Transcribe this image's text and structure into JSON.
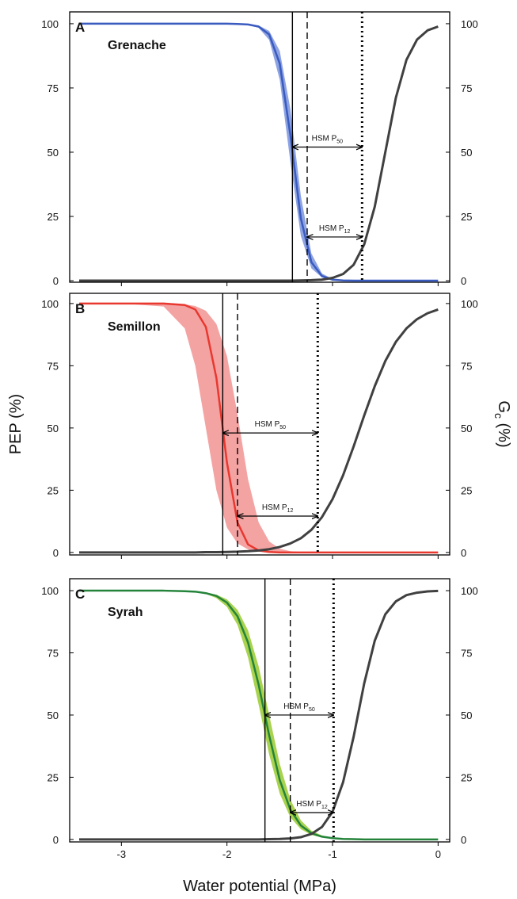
{
  "chart_data": [
    {
      "type": "line",
      "panel": "A",
      "title": "Grenache",
      "x": [
        -3.4,
        -3,
        -2.6,
        -2.4,
        -2.3,
        -2.2,
        -2.1,
        -2,
        -1.9,
        -1.8,
        -1.7,
        -1.6,
        -1.5,
        -1.4,
        -1.3,
        -1.2,
        -1.1,
        -1,
        -0.9,
        -0.8,
        -0.7,
        -0.6,
        -0.5,
        -0.4,
        -0.3,
        -0.2,
        -0.1,
        0
      ],
      "series": [
        {
          "color": "#3a5bbf",
          "band_color": "#8ea3e2",
          "values": [
            100,
            100,
            100,
            100,
            100,
            100,
            100,
            100,
            99.9,
            99.7,
            98.9,
            95.8,
            84.5,
            56.9,
            24.2,
            7.2,
            1.8,
            0.4,
            0.1,
            0,
            0,
            0,
            0,
            0,
            0,
            0,
            0,
            0
          ],
          "band_low": [
            100,
            100,
            100,
            100,
            100,
            100,
            100,
            100,
            99.9,
            99.6,
            98.4,
            93.7,
            78.2,
            46.5,
            17.4,
            4.8,
            1.2,
            0.3,
            0.1,
            0,
            0,
            0,
            0,
            0,
            0,
            0,
            0,
            0
          ],
          "band_high": [
            100,
            100,
            100,
            100,
            100,
            100,
            100,
            100,
            100,
            99.8,
            99.3,
            97.2,
            89.4,
            67.0,
            33.0,
            10.6,
            2.8,
            0.7,
            0.2,
            0,
            0,
            0,
            0,
            0,
            0,
            0,
            0,
            0
          ]
        },
        {
          "color": "#404040",
          "axis": "y2",
          "values": [
            0,
            0,
            0,
            0,
            0,
            0,
            0,
            0,
            0,
            0,
            0,
            0,
            0,
            0,
            0.1,
            0.2,
            0.4,
            1.1,
            2.6,
            6.2,
            14.1,
            28.8,
            50,
            71.2,
            85.9,
            93.8,
            97.4,
            98.9
          ]
        }
      ],
      "xlim": [
        -3.49,
        0.11
      ],
      "ylim": [
        -0.6,
        104.6
      ],
      "yticks": [
        0,
        25,
        50,
        75,
        100
      ],
      "y2lim": [
        -0.6,
        104.6
      ],
      "y2ticks": [
        0,
        25,
        50,
        75,
        100
      ],
      "vlines": [
        {
          "x": -1.38,
          "style": "solid"
        },
        {
          "x": -1.24,
          "style": "dashed"
        },
        {
          "x": -0.72,
          "style": "dotted"
        }
      ],
      "annotations": [
        {
          "text": "HSM P",
          "sub": "50",
          "x_from": -1.38,
          "x_to": -0.72,
          "y": 52
        },
        {
          "text": "HSM P",
          "sub": "12",
          "x_from": -1.24,
          "x_to": -0.72,
          "y": 17
        }
      ]
    },
    {
      "type": "line",
      "panel": "B",
      "title": "Semillon",
      "ylabel": "PEP (%)",
      "y2label": [
        "G",
        "c",
        " (%)"
      ],
      "x": [
        -3.4,
        -3,
        -2.6,
        -2.4,
        -2.3,
        -2.2,
        -2.1,
        -2,
        -1.9,
        -1.8,
        -1.7,
        -1.6,
        -1.5,
        -1.4,
        -1.3,
        -1.2,
        -1.1,
        -1,
        -0.9,
        -0.8,
        -0.7,
        -0.6,
        -0.5,
        -0.4,
        -0.3,
        -0.2,
        -0.1,
        0
      ],
      "series": [
        {
          "color": "#e8382f",
          "band_color": "#f4a3a3",
          "values": [
            100,
            100,
            100,
            99.4,
            97.6,
            90.6,
            70.1,
            36.1,
            12.0,
            3.2,
            0.8,
            0.2,
            0,
            0,
            0,
            0,
            0,
            0,
            0,
            0,
            0,
            0,
            0,
            0,
            0,
            0,
            0,
            0
          ],
          "band_low": [
            100,
            100,
            98.8,
            90.0,
            75.0,
            50,
            25.0,
            10.0,
            3.6,
            1.2,
            0.4,
            0.1,
            0,
            0,
            0,
            0,
            0,
            0,
            0,
            0,
            0,
            0,
            0,
            0,
            0,
            0,
            0,
            0
          ],
          "band_high": [
            100,
            100,
            100,
            99.7,
            99.0,
            97.1,
            91.8,
            78.9,
            55.5,
            29.3,
            12.1,
            4.4,
            1.5,
            0.5,
            0.2,
            0.1,
            0,
            0,
            0,
            0,
            0,
            0,
            0,
            0,
            0,
            0,
            0,
            0
          ]
        },
        {
          "color": "#404040",
          "axis": "y2",
          "values": [
            0,
            0,
            0,
            0,
            0,
            0.1,
            0.1,
            0.2,
            0.3,
            0.5,
            0.8,
            1.3,
            2.2,
            3.6,
            5.7,
            9.1,
            14.2,
            21.4,
            31.0,
            42.6,
            55.0,
            66.8,
            76.9,
            84.6,
            90.0,
            93.7,
            96.1,
            97.6
          ]
        }
      ],
      "xlim": [
        -3.49,
        0.11
      ],
      "ylim": [
        -1,
        104.1
      ],
      "yticks": [
        0,
        25,
        50,
        75,
        100
      ],
      "y2lim": [
        -1,
        104.1
      ],
      "y2ticks": [
        0,
        25,
        50,
        75,
        100
      ],
      "vlines": [
        {
          "x": -2.04,
          "style": "solid"
        },
        {
          "x": -1.9,
          "style": "dashed"
        },
        {
          "x": -1.14,
          "style": "dotted"
        }
      ],
      "annotations": [
        {
          "text": "HSM P",
          "sub": "50",
          "x_from": -2.04,
          "x_to": -1.14,
          "y": 48
        },
        {
          "text": "HSM P",
          "sub": "12",
          "x_from": -1.9,
          "x_to": -1.14,
          "y": 14.6
        }
      ]
    },
    {
      "type": "line",
      "panel": "C",
      "title": "Syrah",
      "xlabel": "Water potential (MPa)",
      "x": [
        -3.4,
        -3,
        -2.6,
        -2.4,
        -2.3,
        -2.2,
        -2.1,
        -2,
        -1.9,
        -1.8,
        -1.7,
        -1.6,
        -1.5,
        -1.4,
        -1.3,
        -1.2,
        -1.1,
        -1,
        -0.9,
        -0.8,
        -0.7,
        -0.6,
        -0.5,
        -0.4,
        -0.3,
        -0.2,
        -0.1,
        0
      ],
      "series": [
        {
          "color": "#24833a",
          "band_color": "#a9d24f",
          "values": [
            100,
            100,
            100,
            99.8,
            99.6,
            99.0,
            97.9,
            95.2,
            89.7,
            79.1,
            62.2,
            41.8,
            23.9,
            12.0,
            5.6,
            2.5,
            1.1,
            0.5,
            0.2,
            0.1,
            0,
            0,
            0,
            0,
            0,
            0,
            0,
            0
          ],
          "band_low": [
            100,
            100,
            100,
            99.7,
            99.4,
            98.7,
            97.0,
            93.5,
            86.2,
            73.1,
            54.2,
            34.1,
            18.4,
            8.9,
            4.1,
            1.8,
            0.8,
            0.4,
            0.2,
            0.1,
            0,
            0,
            0,
            0,
            0,
            0,
            0,
            0
          ],
          "band_high": [
            100,
            100,
            100,
            99.9,
            99.7,
            99.3,
            98.4,
            96.5,
            92.3,
            84.0,
            69.6,
            50,
            30.4,
            16.0,
            7.7,
            3.5,
            1.6,
            0.7,
            0.3,
            0.1,
            0,
            0,
            0,
            0,
            0,
            0,
            0,
            0
          ]
        },
        {
          "color": "#404040",
          "axis": "y2",
          "values": [
            0,
            0,
            0,
            0,
            0,
            0,
            0,
            0,
            0,
            0,
            0,
            0.1,
            0.2,
            0.4,
            0.9,
            2.2,
            5.0,
            11.1,
            23.0,
            41.3,
            62.7,
            79.9,
            90.5,
            95.7,
            98.2,
            99.2,
            99.7,
            99.9
          ]
        }
      ],
      "xlim": [
        -3.49,
        0.11
      ],
      "xticks": [
        -3,
        -2,
        -1,
        0
      ],
      "ylim": [
        -1,
        104.8
      ],
      "yticks": [
        0,
        25,
        50,
        75,
        100
      ],
      "y2lim": [
        -1,
        104.8
      ],
      "y2ticks": [
        0,
        25,
        50,
        75,
        100
      ],
      "vlines": [
        {
          "x": -1.64,
          "style": "solid"
        },
        {
          "x": -1.4,
          "style": "dashed"
        },
        {
          "x": -0.99,
          "style": "dotted"
        }
      ],
      "annotations": [
        {
          "text": "HSM P",
          "sub": "50",
          "x_from": -1.64,
          "x_to": -0.99,
          "y": 50
        },
        {
          "text": "HSM P",
          "sub": "12",
          "x_from": -1.4,
          "x_to": -0.99,
          "y": 10.8
        }
      ]
    }
  ]
}
